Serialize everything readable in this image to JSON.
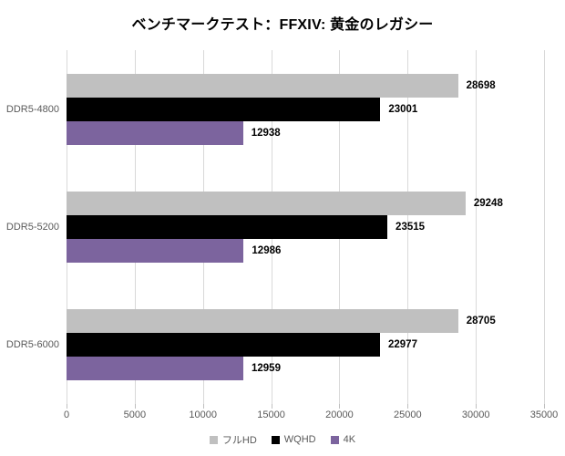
{
  "chart_data": {
    "type": "bar",
    "orientation": "horizontal",
    "title": "ベンチマークテスト：FFXIV: 黄金のレガシー",
    "categories": [
      "DDR5-4800",
      "DDR5-5200",
      "DDR5-6000"
    ],
    "series": [
      {
        "id": "full-hd",
        "name": "フルHD",
        "color": "#C0C0C0",
        "values": [
          28698,
          29248,
          28705
        ]
      },
      {
        "id": "wqhd",
        "name": "WQHD",
        "color": "#000000",
        "values": [
          23001,
          23515,
          22977
        ]
      },
      {
        "id": "4k",
        "name": "4K",
        "color": "#7C649E",
        "values": [
          12938,
          12986,
          12959
        ]
      }
    ],
    "xlim": [
      0,
      35000
    ],
    "x_ticks": [
      0,
      5000,
      10000,
      15000,
      20000,
      25000,
      30000,
      35000
    ],
    "grid": true,
    "value_labels": true,
    "legend_position": "bottom"
  },
  "colors": {
    "gridline": "#D9D9D9",
    "axis_text": "#595959",
    "value_label": "#000000",
    "background": "#FFFFFF"
  }
}
